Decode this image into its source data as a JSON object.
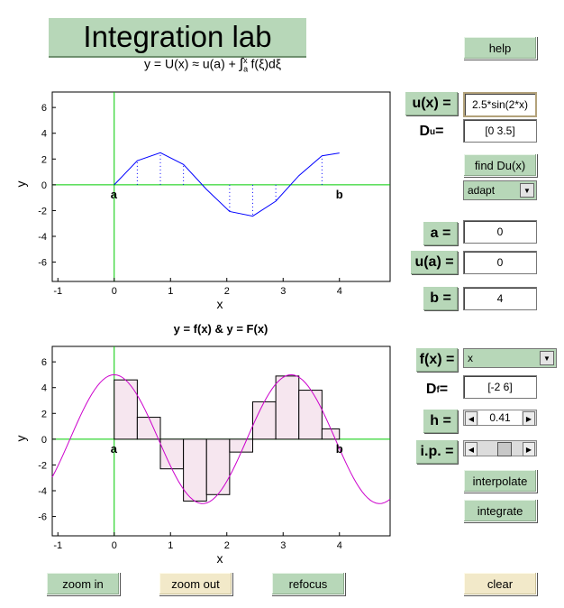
{
  "title": "Integration lab",
  "formula": {
    "lhs": "y = U(x) ≈ u(a) + ",
    "integral_lower": "a",
    "integral_upper": "x",
    "integrand": "f(ξ)dξ"
  },
  "buttons": {
    "help": "help",
    "find_du": "find Du(x)",
    "interpolate": "interpolate",
    "integrate": "integrate",
    "zoom_in": "zoom in",
    "zoom_out": "zoom out",
    "refocus": "refocus",
    "clear": "clear"
  },
  "fields": {
    "u_label": "u(x) =",
    "u_value": "2.5*sin(2*x)",
    "du_label_main": "D",
    "du_label_sub": "u",
    "du_label_eq": " =",
    "du_value": "[0 3.5]",
    "method": "adapt",
    "a_label": "a =",
    "a_value": "0",
    "ua_label": "u(a) =",
    "ua_value": "0",
    "b_label": "b =",
    "b_value": "4",
    "f_label": "f(x) =",
    "f_value": "x",
    "df_label_main": "D",
    "df_label_sub": "f",
    "df_label_eq": " =",
    "df_value": "[-2 6]",
    "h_label": "h =",
    "h_value": "0.41",
    "ip_label": "i.p. =",
    "ip_level": 0.6
  },
  "top_chart": {
    "xlabel": "x",
    "ylabel": "y",
    "xlim": [
      -1.1,
      4.9
    ],
    "ylim": [
      -7.5,
      7.2
    ],
    "xticks": [
      -1,
      0,
      1,
      2,
      3,
      4
    ],
    "yticks": [
      6,
      4,
      2,
      0,
      -2,
      -4,
      -6
    ],
    "marker_a": "a",
    "marker_b": "b"
  },
  "bottom_chart": {
    "title": "y = f(x)  &  y = F(x)",
    "xlabel": "x",
    "ylabel": "y",
    "xlim": [
      -1.1,
      4.9
    ],
    "ylim": [
      -7.5,
      7.2
    ],
    "xticks": [
      -1,
      0,
      1,
      2,
      3,
      4
    ],
    "yticks": [
      6,
      4,
      2,
      0,
      -2,
      -4,
      -6
    ],
    "marker_a": "a",
    "marker_b": "b"
  },
  "chart_data": [
    {
      "type": "line",
      "series": [
        {
          "color": "#0000ff",
          "x": [
            0,
            0.41,
            0.82,
            1.23,
            1.64,
            2.05,
            2.46,
            2.87,
            3.28,
            3.69,
            4.0
          ],
          "y": [
            0,
            1.87,
            2.49,
            1.58,
            -0.36,
            -2.07,
            -2.43,
            -1.27,
            0.71,
            2.25,
            2.47
          ]
        }
      ],
      "stems_x": [
        0.41,
        0.82,
        1.23,
        2.05,
        2.46,
        2.87,
        3.69
      ],
      "xlabel": "x",
      "ylabel": "y",
      "xlim": [
        -1.1,
        4.9
      ],
      "ylim": [
        -7.5,
        7.2
      ]
    },
    {
      "type": "bar",
      "title": "y = f(x)  &  y = F(x)",
      "bar_edges": [
        0,
        0.41,
        0.82,
        1.23,
        1.64,
        2.05,
        2.46,
        2.87,
        3.28,
        3.69,
        4.0
      ],
      "values": [
        4.6,
        1.7,
        -2.3,
        -4.8,
        -4.3,
        -1.0,
        2.9,
        4.9,
        3.8,
        0.8
      ],
      "bar_color": "#f6e6ef",
      "curve_color": "#cc00cc",
      "curve": "5*cos(2*x)",
      "xlabel": "x",
      "ylabel": "y",
      "xlim": [
        -1.1,
        4.9
      ],
      "ylim": [
        -7.5,
        7.2
      ]
    }
  ]
}
